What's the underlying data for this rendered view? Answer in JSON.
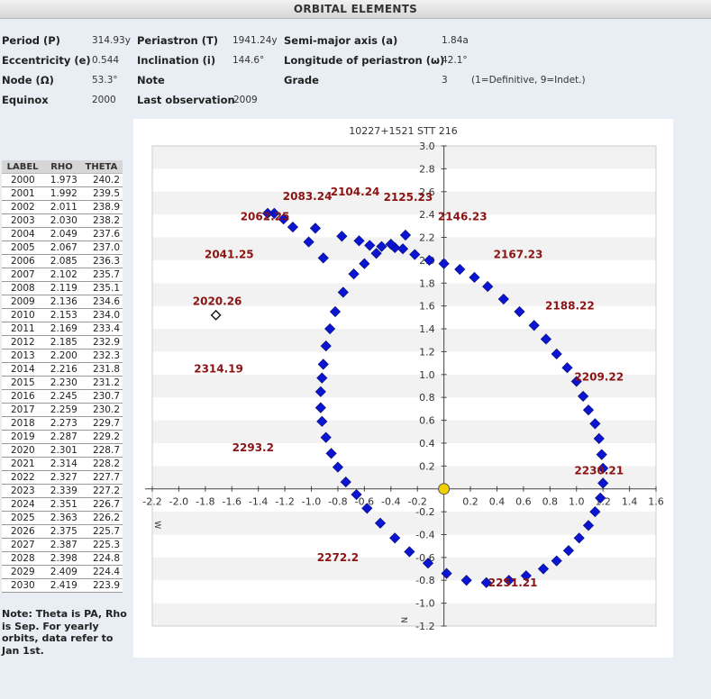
{
  "header": {
    "title": "ORBITAL ELEMENTS"
  },
  "elements": {
    "period_label": "Period (P)",
    "period_value": "314.93y",
    "periastron_label": "Periastron (T)",
    "periastron_value": "1941.24y",
    "semimajor_label": "Semi-major axis (a)",
    "semimajor_value": "1.84a",
    "ecc_label": "Eccentricity (e)",
    "ecc_value": "0.544",
    "incl_label": "Inclination (i)",
    "incl_value": "144.6°",
    "omega_label": "Longitude of periastron (ω)",
    "omega_value": "42.1°",
    "node_label": "Node (Ω)",
    "node_value": "53.3°",
    "note_label": "Note",
    "grade_label": "Grade",
    "grade_value": "3",
    "grade_hint": "(1=Definitive, 9=Indet.)",
    "equinox_label": "Equinox",
    "equinox_value": "2000",
    "lastobs_label": "Last observation",
    "lastobs_value": "2009"
  },
  "ephemeris": {
    "headers": [
      "LABEL",
      "RHO",
      "THETA"
    ],
    "rows": [
      [
        "2000",
        "1.973",
        "240.2"
      ],
      [
        "2001",
        "1.992",
        "239.5"
      ],
      [
        "2002",
        "2.011",
        "238.9"
      ],
      [
        "2003",
        "2.030",
        "238.2"
      ],
      [
        "2004",
        "2.049",
        "237.6"
      ],
      [
        "2005",
        "2.067",
        "237.0"
      ],
      [
        "2006",
        "2.085",
        "236.3"
      ],
      [
        "2007",
        "2.102",
        "235.7"
      ],
      [
        "2008",
        "2.119",
        "235.1"
      ],
      [
        "2009",
        "2.136",
        "234.6"
      ],
      [
        "2010",
        "2.153",
        "234.0"
      ],
      [
        "2011",
        "2.169",
        "233.4"
      ],
      [
        "2012",
        "2.185",
        "232.9"
      ],
      [
        "2013",
        "2.200",
        "232.3"
      ],
      [
        "2014",
        "2.216",
        "231.8"
      ],
      [
        "2015",
        "2.230",
        "231.2"
      ],
      [
        "2016",
        "2.245",
        "230.7"
      ],
      [
        "2017",
        "2.259",
        "230.2"
      ],
      [
        "2018",
        "2.273",
        "229.7"
      ],
      [
        "2019",
        "2.287",
        "229.2"
      ],
      [
        "2020",
        "2.301",
        "228.7"
      ],
      [
        "2021",
        "2.314",
        "228.2"
      ],
      [
        "2022",
        "2.327",
        "227.7"
      ],
      [
        "2023",
        "2.339",
        "227.2"
      ],
      [
        "2024",
        "2.351",
        "226.7"
      ],
      [
        "2025",
        "2.363",
        "226.2"
      ],
      [
        "2026",
        "2.375",
        "225.7"
      ],
      [
        "2027",
        "2.387",
        "225.3"
      ],
      [
        "2028",
        "2.398",
        "224.8"
      ],
      [
        "2029",
        "2.409",
        "224.4"
      ],
      [
        "2030",
        "2.419",
        "223.9"
      ]
    ]
  },
  "note": "Note: Theta is PA, Rho is Sep. For yearly orbits, data refer to Jan 1st.",
  "chart_data": {
    "type": "scatter",
    "title": "10227+1521 STT 216",
    "xlim": [
      -2.2,
      1.6
    ],
    "ylim": [
      -1.2,
      3.0
    ],
    "x_ticks": [
      "-2.2",
      "-2.0",
      "-1.8",
      "-1.6",
      "-1.4",
      "-1.2",
      "-1.0",
      "-0.8",
      "-0.6",
      "-0.4",
      "-0.2",
      "0.2",
      "0.4",
      "0.6",
      "0.8",
      "1.0",
      "1.2",
      "1.4",
      "1.6"
    ],
    "y_ticks": [
      "3.0",
      "2.8",
      "2.6",
      "2.4",
      "2.2",
      "2.0",
      "1.8",
      "1.6",
      "1.4",
      "1.2",
      "1.0",
      "0.8",
      "0.6",
      "0.4",
      "0.2",
      "-0.2",
      "-0.4",
      "-0.6",
      "-0.8",
      "-1.0",
      "-1.2"
    ],
    "axis_markers": {
      "west": "W",
      "north": "N"
    },
    "grid": "horizontal bands",
    "primary_star": {
      "x": 0,
      "y": 0,
      "color": "#f0d000"
    },
    "orbit_points": [
      [
        -0.91,
        2.02
      ],
      [
        -1.02,
        2.16
      ],
      [
        -1.14,
        2.29
      ],
      [
        -1.28,
        2.41
      ],
      [
        -1.33,
        2.41
      ],
      [
        -1.21,
        2.36
      ],
      [
        -0.97,
        2.28
      ],
      [
        -0.77,
        2.21
      ],
      [
        -0.64,
        2.17
      ],
      [
        -0.56,
        2.13
      ],
      [
        -0.47,
        2.12
      ],
      [
        -0.37,
        2.11
      ],
      [
        -0.31,
        2.1
      ],
      [
        -0.22,
        2.05
      ],
      [
        -0.11,
        2.0
      ],
      [
        0.0,
        1.97
      ],
      [
        0.12,
        1.92
      ],
      [
        0.23,
        1.85
      ],
      [
        0.33,
        1.77
      ],
      [
        0.45,
        1.66
      ],
      [
        0.57,
        1.55
      ],
      [
        0.68,
        1.43
      ],
      [
        0.77,
        1.31
      ],
      [
        0.85,
        1.18
      ],
      [
        0.93,
        1.06
      ],
      [
        1.0,
        0.94
      ],
      [
        1.05,
        0.81
      ],
      [
        1.09,
        0.69
      ],
      [
        1.14,
        0.57
      ],
      [
        1.17,
        0.44
      ],
      [
        1.19,
        0.3
      ],
      [
        1.2,
        0.18
      ],
      [
        1.2,
        0.05
      ],
      [
        1.18,
        -0.08
      ],
      [
        1.14,
        -0.2
      ],
      [
        1.09,
        -0.32
      ],
      [
        1.02,
        -0.43
      ],
      [
        0.94,
        -0.54
      ],
      [
        0.85,
        -0.63
      ],
      [
        0.75,
        -0.7
      ],
      [
        0.62,
        -0.76
      ],
      [
        0.49,
        -0.8
      ],
      [
        0.32,
        -0.82
      ],
      [
        0.17,
        -0.8
      ],
      [
        0.02,
        -0.74
      ],
      [
        -0.12,
        -0.65
      ],
      [
        -0.26,
        -0.55
      ],
      [
        -0.37,
        -0.43
      ],
      [
        -0.48,
        -0.3
      ],
      [
        -0.58,
        -0.17
      ],
      [
        -0.66,
        -0.05
      ],
      [
        -0.74,
        0.06
      ],
      [
        -0.8,
        0.19
      ],
      [
        -0.85,
        0.31
      ],
      [
        -0.89,
        0.45
      ],
      [
        -0.92,
        0.59
      ],
      [
        -0.93,
        0.71
      ],
      [
        -0.93,
        0.85
      ],
      [
        -0.92,
        0.97
      ],
      [
        -0.91,
        1.09
      ],
      [
        -0.89,
        1.25
      ],
      [
        -0.86,
        1.4
      ],
      [
        -0.82,
        1.55
      ],
      [
        -0.76,
        1.72
      ],
      [
        -0.68,
        1.88
      ],
      [
        -0.6,
        1.97
      ],
      [
        -0.51,
        2.06
      ],
      [
        -0.4,
        2.14
      ],
      [
        -0.29,
        2.22
      ]
    ],
    "observation_points": [
      [
        -1.72,
        1.52
      ]
    ],
    "point_labels": [
      {
        "text": "2020.26",
        "x": -1.71,
        "y": 1.64
      },
      {
        "text": "2041.25",
        "x": -1.62,
        "y": 2.05
      },
      {
        "text": "2062.25",
        "x": -1.35,
        "y": 2.38
      },
      {
        "text": "2083.24",
        "x": -1.03,
        "y": 2.56
      },
      {
        "text": "2104.24",
        "x": -0.67,
        "y": 2.6
      },
      {
        "text": "2125.23",
        "x": -0.27,
        "y": 2.55
      },
      {
        "text": "2146.23",
        "x": 0.14,
        "y": 2.38
      },
      {
        "text": "2167.23",
        "x": 0.56,
        "y": 2.05
      },
      {
        "text": "2188.22",
        "x": 0.95,
        "y": 1.6
      },
      {
        "text": "2209.22",
        "x": 1.17,
        "y": 0.98
      },
      {
        "text": "2230.21",
        "x": 1.17,
        "y": 0.16
      },
      {
        "text": "2251.21",
        "x": 0.52,
        "y": -0.82
      },
      {
        "text": "2272.2",
        "x": -0.8,
        "y": -0.6
      },
      {
        "text": "2293.2",
        "x": -1.44,
        "y": 0.36
      },
      {
        "text": "2314.19",
        "x": -1.7,
        "y": 1.05
      }
    ]
  }
}
